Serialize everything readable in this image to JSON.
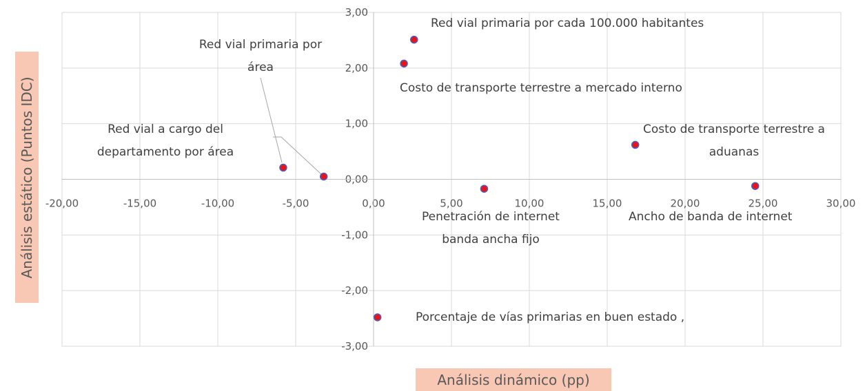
{
  "chart_data": {
    "type": "scatter",
    "x_label": "Análisis dinámico (pp)",
    "y_label": "Análisis estático (Puntos IDC)",
    "x": [
      2.6,
      1.95,
      -5.8,
      -3.2,
      7.1,
      16.8,
      24.5,
      0.25
    ],
    "values": [
      2.51,
      2.08,
      0.21,
      0.05,
      -0.17,
      0.62,
      -0.12,
      -2.48
    ],
    "point_labels": [
      [
        "Red vial primaria por cada 100.000 habitantes"
      ],
      [
        "Costo de transporte terrestre a mercado interno"
      ],
      [
        "Red vial a cargo del",
        "departamento por área"
      ],
      [
        "Red vial primaria por",
        "área"
      ],
      [
        "Penetración de internet",
        "banda ancha fijo"
      ],
      [
        "Costo de transporte terrestre a",
        "aduanas"
      ],
      [
        "Ancho de banda de internet"
      ],
      [
        "Porcentaje de vías primarias en buen estado ,"
      ]
    ],
    "color": "#e8141c",
    "edge_color": "#4a5fc1",
    "xlim": [
      -20,
      30
    ],
    "xticks": [
      {
        "value": -20,
        "label": "-20,00"
      },
      {
        "value": -15,
        "label": "-15,00"
      },
      {
        "value": -10,
        "label": "-10,00"
      },
      {
        "value": -5,
        "label": "-5,00"
      },
      {
        "value": 0,
        "label": "0,00"
      },
      {
        "value": 5,
        "label": "5,00"
      },
      {
        "value": 10,
        "label": "10,00"
      },
      {
        "value": 15,
        "label": "15,00"
      },
      {
        "value": 20,
        "label": "20,00"
      },
      {
        "value": 25,
        "label": "25,00"
      },
      {
        "value": 30,
        "label": "30,00"
      }
    ],
    "ylim": [
      -3,
      3
    ],
    "yticks": [
      {
        "value": -3,
        "label": "-3,00"
      },
      {
        "value": -2,
        "label": "-2,00"
      },
      {
        "value": -1,
        "label": "-1,00"
      },
      {
        "value": 0,
        "label": "0,00"
      },
      {
        "value": 1,
        "label": "1,00"
      },
      {
        "value": 2,
        "label": "2,00"
      },
      {
        "value": 3,
        "label": "3,00"
      }
    ],
    "grid": true
  }
}
